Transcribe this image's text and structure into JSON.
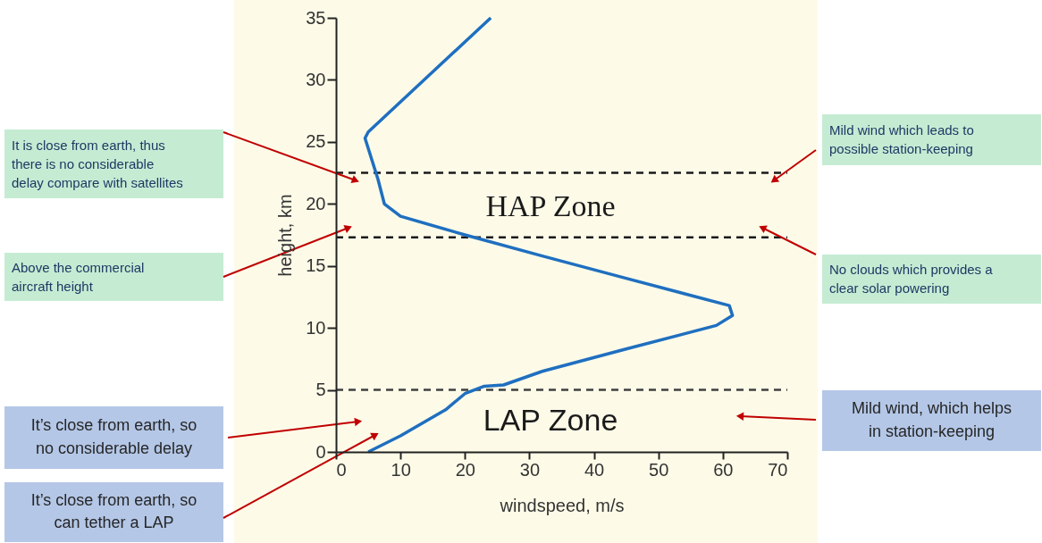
{
  "chart_data": {
    "type": "line",
    "xlabel": "windspeed, m/s",
    "ylabel": "height, km",
    "xlim": [
      0,
      70
    ],
    "xticks": [
      0,
      10,
      20,
      30,
      40,
      50,
      60,
      70
    ],
    "ylim": [
      0,
      35
    ],
    "yticks": [
      0,
      5,
      10,
      15,
      20,
      25,
      30,
      35
    ],
    "grid": false,
    "marker": "none",
    "line_style": "solid",
    "series": [
      {
        "color": "#1f6fc0",
        "x": [
          5,
          10,
          17,
          20,
          23,
          26,
          32,
          45,
          59,
          61.5,
          61,
          45,
          32,
          20,
          10,
          7.5,
          6.5,
          4.5,
          5,
          24
        ],
        "values": [
          0,
          1.3,
          3.4,
          4.7,
          5.3,
          5.4,
          6.5,
          8.3,
          10.2,
          11,
          11.8,
          14,
          15.8,
          17.5,
          19,
          20,
          22,
          25.3,
          25.8,
          35
        ]
      }
    ],
    "ref_lines": [
      {
        "axis": "y",
        "value": 22.5,
        "color": "#1a1a1a",
        "line_style": "dashed"
      },
      {
        "axis": "y",
        "value": 17.3,
        "color": "#1a1a1a",
        "line_style": "dashed"
      },
      {
        "axis": "y",
        "value": 5,
        "color": "#404040",
        "line_style": "dashed"
      }
    ],
    "annotations": [
      "HAP Zone",
      "LAP Zone",
      "It is close from earth, thus\nthere is no considerable\ndelay compare with satellites",
      "Above the commercial\naircraft height",
      "It’s close from earth, so\nno considerable delay",
      "It’s close from earth, so\ncan tether a LAP",
      "Mild wind which leads to\npossible station-keeping",
      "No clouds which provides a\nclear solar powering",
      "Mild wind, which helps\nin station-keeping"
    ]
  }
}
